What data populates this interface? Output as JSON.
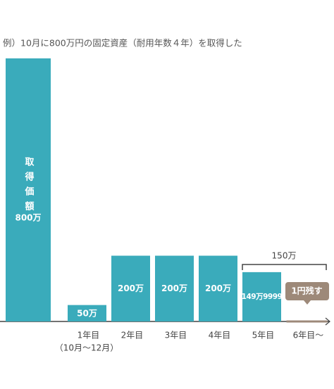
{
  "chart_data": {
    "type": "bar",
    "title": "例）10月に800万円の固定資産（耐用年数４年）を取得した",
    "categories": [
      "取得価額",
      "1年目",
      "2年目",
      "3年目",
      "4年目",
      "5年目",
      "6年目〜"
    ],
    "category_note": "（10月〜12月）",
    "values": [
      800,
      50,
      200,
      200,
      200,
      149.9999,
      0.0001
    ],
    "value_labels": [
      "800万",
      "50万",
      "200万",
      "200万",
      "200万",
      "149万9999",
      "1円残す"
    ],
    "colors": [
      "#3aabbb",
      "#3aabbb",
      "#3aabbb",
      "#3aabbb",
      "#3aabbb",
      "#3aabbb",
      "#9d8979"
    ],
    "annotation": "150万",
    "ylim": [
      0,
      800
    ]
  }
}
